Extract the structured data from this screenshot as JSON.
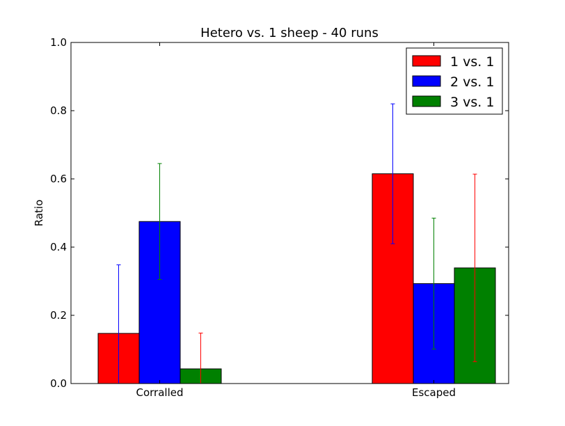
{
  "chart_data": {
    "type": "bar",
    "title": "Hetero vs. 1 sheep - 40 runs",
    "xlabel": "",
    "ylabel": "Ratio",
    "ylim": [
      0.0,
      1.0
    ],
    "yticks": [
      "0.0",
      "0.2",
      "0.4",
      "0.6",
      "0.8",
      "1.0"
    ],
    "categories": [
      "Corralled",
      "Escaped"
    ],
    "legend_position": "top-right",
    "grid": false,
    "series": [
      {
        "name": "1 vs. 1",
        "color": "#ff0000",
        "error_color": "#0000ff",
        "values": [
          0.147,
          0.615
        ],
        "errors": [
          0.201,
          0.205
        ]
      },
      {
        "name": "2 vs. 1",
        "color": "#0000ff",
        "error_color": "#008000",
        "values": [
          0.475,
          0.293
        ],
        "errors": [
          0.17,
          0.192
        ]
      },
      {
        "name": "3 vs. 1",
        "color": "#008000",
        "error_color": "#ff0000",
        "values": [
          0.043,
          0.339
        ],
        "errors": [
          0.105,
          0.275
        ]
      }
    ]
  }
}
